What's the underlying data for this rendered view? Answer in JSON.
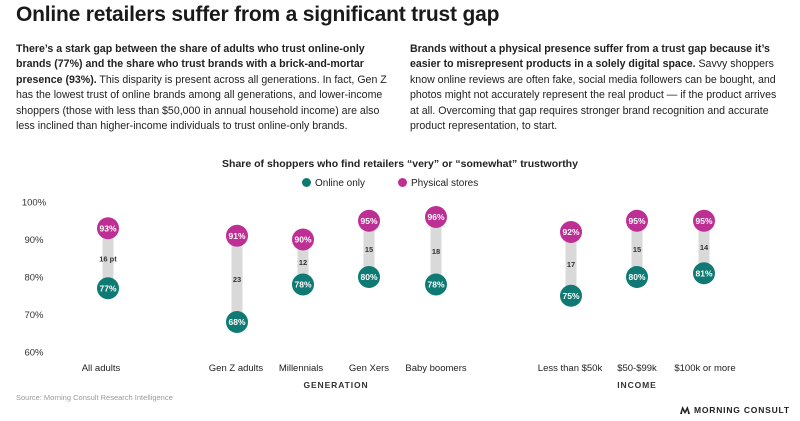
{
  "title": "Online retailers suffer from a significant trust gap",
  "paragraph_left": {
    "bold": "There’s a stark gap between the share of adults who trust online-only brands (77%) and the share who trust brands with a brick-and-mortar presence (93%).",
    "rest": " This disparity is present across all generations. In fact, Gen Z has the lowest trust of online brands among all generations, and lower-income shoppers (those with less than $50,000 in annual household income) are also less inclined than higher-income individuals to trust online-only brands."
  },
  "paragraph_right": {
    "bold": "Brands without a physical presence suffer from a trust gap because it’s easier to misrepresent products in a solely digital space.",
    "rest": " Savvy shoppers know online reviews are often fake, social media followers can be bought, and photos might not accurately represent the real product — if the product arrives at all. Overcoming that gap requires stronger brand recognition and accurate product representation, to start."
  },
  "source": "Source: Morning Consult Research Intelligence",
  "logo": "MORNING CONSULT",
  "colors": {
    "online": "#0f7a73",
    "physical": "#be2f94",
    "gap_bar": "#d9d9d9"
  },
  "chart_data": {
    "type": "dumbbell",
    "title": "Share of shoppers who find retailers “very” or “somewhat” trustworthy",
    "legend": [
      "Online only",
      "Physical stores"
    ],
    "ylim": [
      60,
      100
    ],
    "yticks": [
      "100%",
      "90%",
      "80%",
      "70%",
      "60%"
    ],
    "groups": [
      "GENERATION",
      "INCOME"
    ],
    "categories": [
      "All adults",
      "Gen Z adults",
      "Millennials",
      "Gen Xers",
      "Baby boomers",
      "Less than $50k",
      "$50-$99k",
      "$100k or more"
    ],
    "series": [
      {
        "name": "Online only",
        "values": [
          77,
          68,
          78,
          80,
          78,
          75,
          80,
          81
        ],
        "labels": [
          "77%",
          "68%",
          "78%",
          "80%",
          "78%",
          "75%",
          "80%",
          "81%"
        ]
      },
      {
        "name": "Physical stores",
        "values": [
          93,
          91,
          90,
          95,
          96,
          92,
          95,
          95
        ],
        "labels": [
          "93%",
          "91%",
          "90%",
          "95%",
          "96%",
          "92%",
          "95%",
          "95%"
        ]
      }
    ],
    "gap_labels": [
      "16 pt",
      "23",
      "12",
      "15",
      "18",
      "17",
      "15",
      "14"
    ]
  }
}
